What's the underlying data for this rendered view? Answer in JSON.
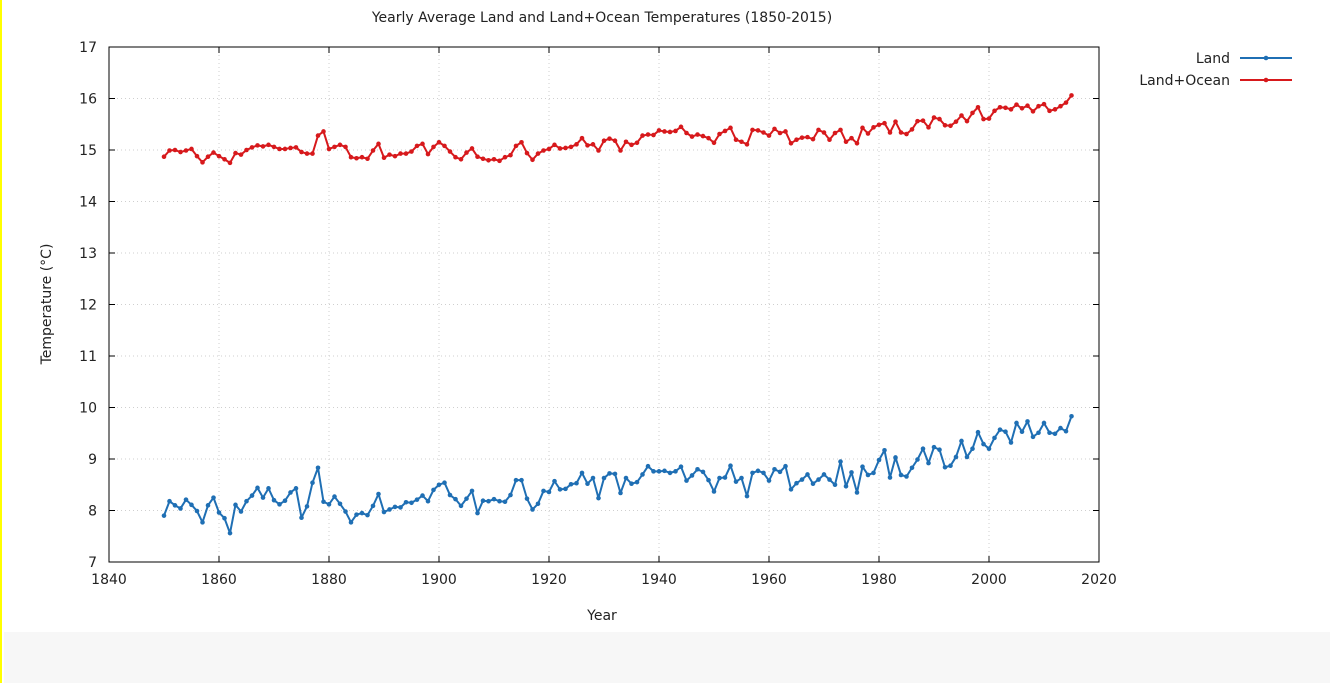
{
  "chart_data": {
    "type": "line",
    "title": "Yearly Average Land and Land+Ocean Temperatures (1850-2015)",
    "xlabel": "Year",
    "ylabel": "Temperature (°C)",
    "xlim": [
      1840,
      2020
    ],
    "ylim": [
      7,
      17
    ],
    "xticks": [
      "1840",
      "1860",
      "1880",
      "1900",
      "1920",
      "1940",
      "1960",
      "1980",
      "2000",
      "2020"
    ],
    "yticks": [
      "7",
      "8",
      "9",
      "10",
      "11",
      "12",
      "13",
      "14",
      "15",
      "16",
      "17"
    ],
    "grid": true,
    "legend_position": "top-right",
    "series": [
      {
        "name": "Land",
        "color": "#1f6fb4",
        "x": [
          1850,
          1851,
          1852,
          1853,
          1854,
          1855,
          1856,
          1857,
          1858,
          1859,
          1860,
          1861,
          1862,
          1863,
          1864,
          1865,
          1866,
          1867,
          1868,
          1869,
          1870,
          1871,
          1872,
          1873,
          1874,
          1875,
          1876,
          1877,
          1878,
          1879,
          1880,
          1881,
          1882,
          1883,
          1884,
          1885,
          1886,
          1887,
          1888,
          1889,
          1890,
          1891,
          1892,
          1893,
          1894,
          1895,
          1896,
          1897,
          1898,
          1899,
          1900,
          1901,
          1902,
          1903,
          1904,
          1905,
          1906,
          1907,
          1908,
          1909,
          1910,
          1911,
          1912,
          1913,
          1914,
          1915,
          1916,
          1917,
          1918,
          1919,
          1920,
          1921,
          1922,
          1923,
          1924,
          1925,
          1926,
          1927,
          1928,
          1929,
          1930,
          1931,
          1932,
          1933,
          1934,
          1935,
          1936,
          1937,
          1938,
          1939,
          1940,
          1941,
          1942,
          1943,
          1944,
          1945,
          1946,
          1947,
          1948,
          1949,
          1950,
          1951,
          1952,
          1953,
          1954,
          1955,
          1956,
          1957,
          1958,
          1959,
          1960,
          1961,
          1962,
          1963,
          1964,
          1965,
          1966,
          1967,
          1968,
          1969,
          1970,
          1971,
          1972,
          1973,
          1974,
          1975,
          1976,
          1977,
          1978,
          1979,
          1980,
          1981,
          1982,
          1983,
          1984,
          1985,
          1986,
          1987,
          1988,
          1989,
          1990,
          1991,
          1992,
          1993,
          1994,
          1995,
          1996,
          1997,
          1998,
          1999,
          2000,
          2001,
          2002,
          2003,
          2004,
          2005,
          2006,
          2007,
          2008,
          2009,
          2010,
          2011,
          2012,
          2013,
          2014,
          2015
        ],
        "values": [
          7.9,
          8.18,
          8.1,
          8.04,
          8.21,
          8.11,
          7.99,
          7.77,
          8.1,
          8.25,
          7.96,
          7.85,
          7.56,
          8.11,
          7.98,
          8.18,
          8.29,
          8.44,
          8.25,
          8.43,
          8.2,
          8.12,
          8.19,
          8.35,
          8.43,
          7.86,
          8.08,
          8.54,
          8.83,
          8.17,
          8.12,
          8.27,
          8.13,
          7.98,
          7.77,
          7.92,
          7.95,
          7.91,
          8.09,
          8.32,
          7.97,
          8.02,
          8.07,
          8.06,
          8.16,
          8.15,
          8.21,
          8.29,
          8.18,
          8.4,
          8.5,
          8.54,
          8.3,
          8.22,
          8.09,
          8.23,
          8.38,
          7.95,
          8.19,
          8.18,
          8.22,
          8.18,
          8.17,
          8.3,
          8.59,
          8.59,
          8.23,
          8.02,
          8.13,
          8.38,
          8.36,
          8.57,
          8.41,
          8.42,
          8.51,
          8.53,
          8.73,
          8.52,
          8.63,
          8.24,
          8.63,
          8.72,
          8.71,
          8.34,
          8.63,
          8.52,
          8.55,
          8.7,
          8.86,
          8.76,
          8.76,
          8.77,
          8.73,
          8.76,
          8.85,
          8.58,
          8.68,
          8.8,
          8.75,
          8.59,
          8.37,
          8.63,
          8.64,
          8.87,
          8.56,
          8.63,
          8.28,
          8.73,
          8.77,
          8.73,
          8.58,
          8.8,
          8.75,
          8.86,
          8.41,
          8.53,
          8.6,
          8.7,
          8.52,
          8.6,
          8.7,
          8.6,
          8.5,
          8.95,
          8.47,
          8.74,
          8.35,
          8.85,
          8.69,
          8.73,
          8.98,
          9.17,
          8.64,
          9.03,
          8.69,
          8.66,
          8.83,
          8.99,
          9.2,
          8.92,
          9.23,
          9.18,
          8.84,
          8.87,
          9.04,
          9.35,
          9.04,
          9.2,
          9.52,
          9.29,
          9.2,
          9.41,
          9.57,
          9.53,
          9.32,
          9.7,
          9.53,
          9.73,
          9.43,
          9.51,
          9.7,
          9.51,
          9.49,
          9.6,
          9.54,
          9.83
        ]
      },
      {
        "name": "Land+Ocean",
        "color": "#d7191c",
        "x": [
          1850,
          1851,
          1852,
          1853,
          1854,
          1855,
          1856,
          1857,
          1858,
          1859,
          1860,
          1861,
          1862,
          1863,
          1864,
          1865,
          1866,
          1867,
          1868,
          1869,
          1870,
          1871,
          1872,
          1873,
          1874,
          1875,
          1876,
          1877,
          1878,
          1879,
          1880,
          1881,
          1882,
          1883,
          1884,
          1885,
          1886,
          1887,
          1888,
          1889,
          1890,
          1891,
          1892,
          1893,
          1894,
          1895,
          1896,
          1897,
          1898,
          1899,
          1900,
          1901,
          1902,
          1903,
          1904,
          1905,
          1906,
          1907,
          1908,
          1909,
          1910,
          1911,
          1912,
          1913,
          1914,
          1915,
          1916,
          1917,
          1918,
          1919,
          1920,
          1921,
          1922,
          1923,
          1924,
          1925,
          1926,
          1927,
          1928,
          1929,
          1930,
          1931,
          1932,
          1933,
          1934,
          1935,
          1936,
          1937,
          1938,
          1939,
          1940,
          1941,
          1942,
          1943,
          1944,
          1945,
          1946,
          1947,
          1948,
          1949,
          1950,
          1951,
          1952,
          1953,
          1954,
          1955,
          1956,
          1957,
          1958,
          1959,
          1960,
          1961,
          1962,
          1963,
          1964,
          1965,
          1966,
          1967,
          1968,
          1969,
          1970,
          1971,
          1972,
          1973,
          1974,
          1975,
          1976,
          1977,
          1978,
          1979,
          1980,
          1981,
          1982,
          1983,
          1984,
          1985,
          1986,
          1987,
          1988,
          1989,
          1990,
          1991,
          1992,
          1993,
          1994,
          1995,
          1996,
          1997,
          1998,
          1999,
          2000,
          2001,
          2002,
          2003,
          2004,
          2005,
          2006,
          2007,
          2008,
          2009,
          2010,
          2011,
          2012,
          2013,
          2014,
          2015
        ],
        "values": [
          14.87,
          14.99,
          15.0,
          14.96,
          14.99,
          15.02,
          14.88,
          14.76,
          14.87,
          14.95,
          14.88,
          14.82,
          14.75,
          14.94,
          14.91,
          15.0,
          15.05,
          15.09,
          15.07,
          15.1,
          15.06,
          15.02,
          15.02,
          15.04,
          15.05,
          14.96,
          14.93,
          14.93,
          15.28,
          15.36,
          15.02,
          15.06,
          15.1,
          15.06,
          14.86,
          14.84,
          14.86,
          14.83,
          14.99,
          15.12,
          14.85,
          14.91,
          14.88,
          14.93,
          14.93,
          14.97,
          15.08,
          15.12,
          14.92,
          15.06,
          15.15,
          15.08,
          14.97,
          14.86,
          14.82,
          14.95,
          15.03,
          14.87,
          14.83,
          14.8,
          14.82,
          14.79,
          14.86,
          14.9,
          15.08,
          15.15,
          14.94,
          14.81,
          14.93,
          14.99,
          15.02,
          15.1,
          15.03,
          15.04,
          15.06,
          15.11,
          15.23,
          15.09,
          15.11,
          14.99,
          15.18,
          15.22,
          15.18,
          14.99,
          15.16,
          15.1,
          15.14,
          15.28,
          15.3,
          15.29,
          15.38,
          15.36,
          15.35,
          15.37,
          15.45,
          15.33,
          15.26,
          15.3,
          15.27,
          15.23,
          15.14,
          15.31,
          15.37,
          15.43,
          15.2,
          15.16,
          15.11,
          15.39,
          15.38,
          15.34,
          15.28,
          15.41,
          15.33,
          15.36,
          15.13,
          15.2,
          15.24,
          15.25,
          15.21,
          15.39,
          15.34,
          15.2,
          15.33,
          15.39,
          15.16,
          15.23,
          15.13,
          15.43,
          15.32,
          15.44,
          15.49,
          15.52,
          15.34,
          15.55,
          15.34,
          15.31,
          15.4,
          15.56,
          15.57,
          15.44,
          15.63,
          15.6,
          15.48,
          15.47,
          15.55,
          15.67,
          15.56,
          15.72,
          15.83,
          15.6,
          15.61,
          15.76,
          15.83,
          15.82,
          15.79,
          15.88,
          15.81,
          15.86,
          15.75,
          15.85,
          15.89,
          15.76,
          15.79,
          15.85,
          15.92,
          16.06
        ]
      }
    ]
  }
}
